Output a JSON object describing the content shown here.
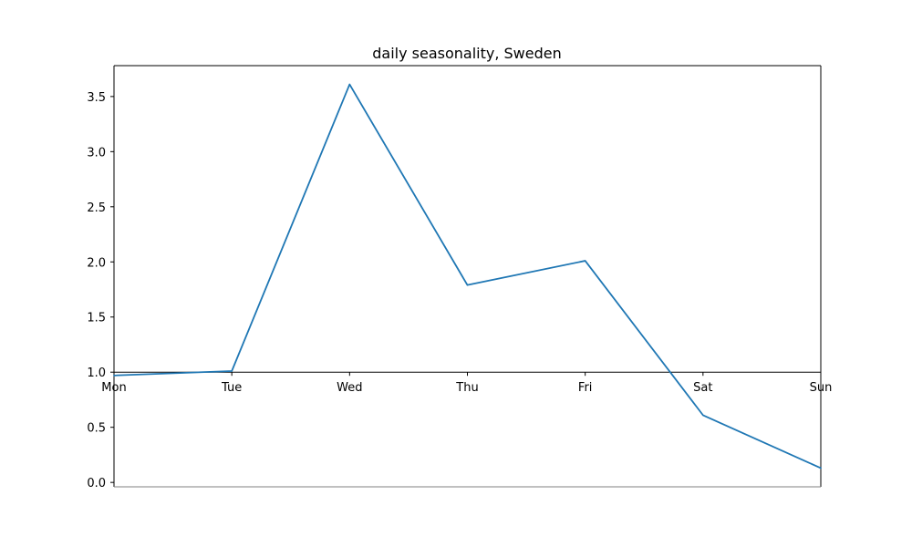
{
  "chart_data": {
    "type": "line",
    "title": "daily seasonality, Sweden",
    "xlabel": "",
    "ylabel": "",
    "categories": [
      "Mon",
      "Tue",
      "Wed",
      "Thu",
      "Fri",
      "Sat",
      "Sun"
    ],
    "series": [
      {
        "values": [
          0.97,
          1.01,
          3.61,
          1.79,
          2.01,
          0.61,
          0.13
        ]
      }
    ],
    "ylim": [
      -0.04,
      3.78
    ],
    "yticks": [
      0.0,
      0.5,
      1.0,
      1.5,
      2.0,
      2.5,
      3.0,
      3.5
    ],
    "ytick_labels": [
      "0.0",
      "0.5",
      "1.0",
      "1.5",
      "2.0",
      "2.5",
      "3.0",
      "3.5"
    ],
    "x_axis_position": 1.0,
    "grid": false,
    "colors": {
      "line": "#1f77b4",
      "axis": "#000000",
      "bottom_spine": "#808080",
      "background": "#ffffff"
    }
  }
}
